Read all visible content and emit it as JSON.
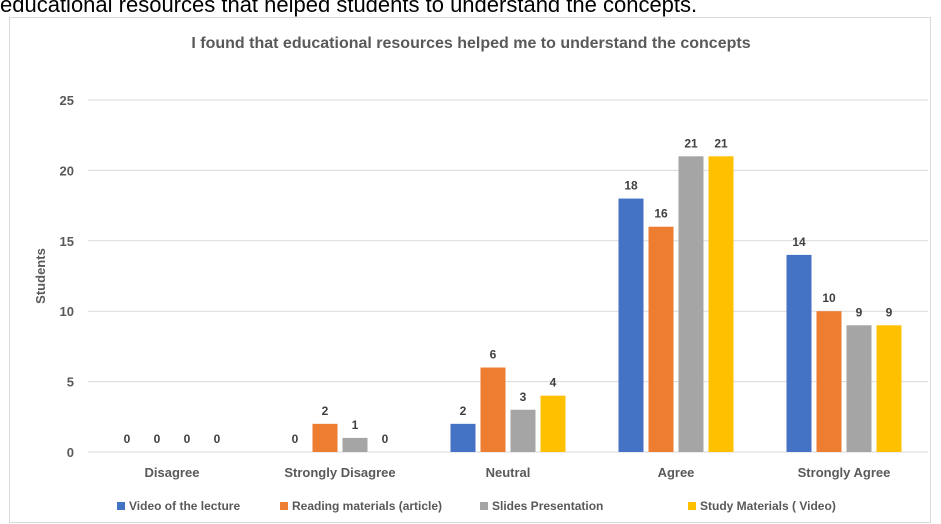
{
  "caption": "educational resources that helped students to understand the concepts.",
  "chart_data": {
    "type": "bar",
    "title": "I found that educational resources helped me to understand the concepts",
    "xlabel": "",
    "ylabel": "Students",
    "ylim": [
      0,
      25
    ],
    "yticks": [
      0,
      5,
      10,
      15,
      20,
      25
    ],
    "grid": true,
    "legend_position": "bottom",
    "categories": [
      "Disagree",
      "Strongly Disagree",
      "Neutral",
      "Agree",
      "Strongly Agree"
    ],
    "series": [
      {
        "name": "Video of the lecture",
        "color": "#4472c4",
        "values": [
          0,
          0,
          2,
          18,
          14
        ]
      },
      {
        "name": "Reading materials (article)",
        "color": "#ed7d31",
        "values": [
          0,
          2,
          6,
          16,
          10
        ]
      },
      {
        "name": "Slides Presentation",
        "color": "#a5a5a5",
        "values": [
          0,
          1,
          3,
          21,
          9
        ]
      },
      {
        "name": "Study Materials ( Video)",
        "color": "#ffc000",
        "values": [
          0,
          0,
          4,
          21,
          9
        ]
      }
    ]
  }
}
